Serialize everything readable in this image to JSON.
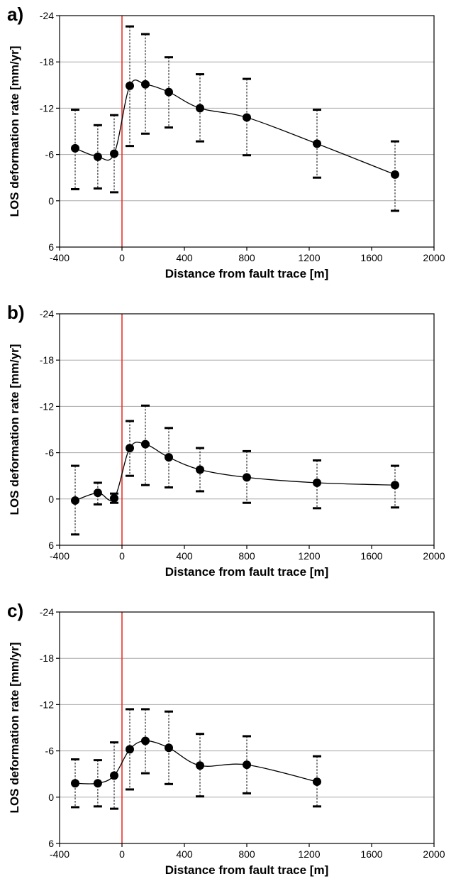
{
  "chart_data": [
    {
      "type": "line",
      "panel_label": "a)",
      "xlabel": "Distance from fault trace [m]",
      "ylabel": "LOS deformation rate [mm/yr]",
      "xlim": [
        -400,
        2000
      ],
      "ylim": [
        -24,
        6
      ],
      "y_inverted": true,
      "xticks": [
        -400,
        0,
        400,
        800,
        1200,
        1600,
        2000
      ],
      "yticks": [
        -24,
        -18,
        -12,
        -6,
        0,
        6
      ],
      "grid": "horizontal",
      "fault_trace_x": 0,
      "fault_trace_color": "#e8332a",
      "series": [
        {
          "x": [
            -300,
            -155,
            -50,
            50,
            150,
            300,
            500,
            800,
            1250,
            1750
          ],
          "y": [
            -6.8,
            -5.7,
            -6.1,
            -14.9,
            -15.1,
            -14.1,
            -12.0,
            -10.8,
            -7.4,
            -3.4
          ],
          "err_low": [
            -1.5,
            -1.6,
            -1.1,
            -7.1,
            -8.7,
            -9.5,
            -7.7,
            -5.9,
            -3.0,
            1.3
          ],
          "err_high": [
            -11.8,
            -9.8,
            -11.1,
            -22.6,
            -21.6,
            -18.6,
            -16.4,
            -15.8,
            -11.8,
            -7.7
          ]
        }
      ]
    },
    {
      "type": "line",
      "panel_label": "b)",
      "xlabel": "Distance from fault trace [m]",
      "ylabel": "LOS deformation rate [mm/yr]",
      "xlim": [
        -400,
        2000
      ],
      "ylim": [
        -24,
        6
      ],
      "y_inverted": true,
      "xticks": [
        -400,
        0,
        400,
        800,
        1200,
        1600,
        2000
      ],
      "yticks": [
        -24,
        -18,
        -12,
        -6,
        0,
        6
      ],
      "grid": "horizontal",
      "fault_trace_x": 0,
      "fault_trace_color": "#e8332a",
      "series": [
        {
          "x": [
            -300,
            -155,
            -50,
            50,
            150,
            300,
            500,
            800,
            1250,
            1750
          ],
          "y": [
            0.2,
            -0.8,
            -0.1,
            -6.6,
            -7.1,
            -5.4,
            -3.8,
            -2.8,
            -2.1,
            -1.8
          ],
          "err_low": [
            4.6,
            0.7,
            0.5,
            -3.0,
            -1.8,
            -1.5,
            -1.0,
            0.5,
            1.2,
            1.1
          ],
          "err_high": [
            -4.3,
            -2.1,
            -0.7,
            -10.1,
            -12.1,
            -9.2,
            -6.6,
            -6.2,
            -5.0,
            -4.3
          ]
        }
      ]
    },
    {
      "type": "line",
      "panel_label": "c)",
      "xlabel": "Distance from fault trace [m]",
      "ylabel": "LOS deformation rate [mm/yr]",
      "xlim": [
        -400,
        2000
      ],
      "ylim": [
        -24,
        6
      ],
      "y_inverted": true,
      "xticks": [
        -400,
        0,
        400,
        800,
        1200,
        1600,
        2000
      ],
      "yticks": [
        -24,
        -18,
        -12,
        -6,
        0,
        6
      ],
      "grid": "horizontal",
      "fault_trace_x": 0,
      "fault_trace_color": "#e8332a",
      "series": [
        {
          "x": [
            -300,
            -155,
            -50,
            50,
            150,
            300,
            500,
            800,
            1250
          ],
          "y": [
            -1.8,
            -1.8,
            -2.8,
            -6.2,
            -7.3,
            -6.4,
            -4.1,
            -4.2,
            -2.0
          ],
          "err_low": [
            1.3,
            1.2,
            1.5,
            -1.0,
            -3.1,
            -1.7,
            -0.1,
            -0.5,
            1.2
          ],
          "err_high": [
            -4.9,
            -4.8,
            -7.1,
            -11.4,
            -11.4,
            -11.1,
            -8.2,
            -7.9,
            -5.3
          ]
        }
      ]
    }
  ]
}
